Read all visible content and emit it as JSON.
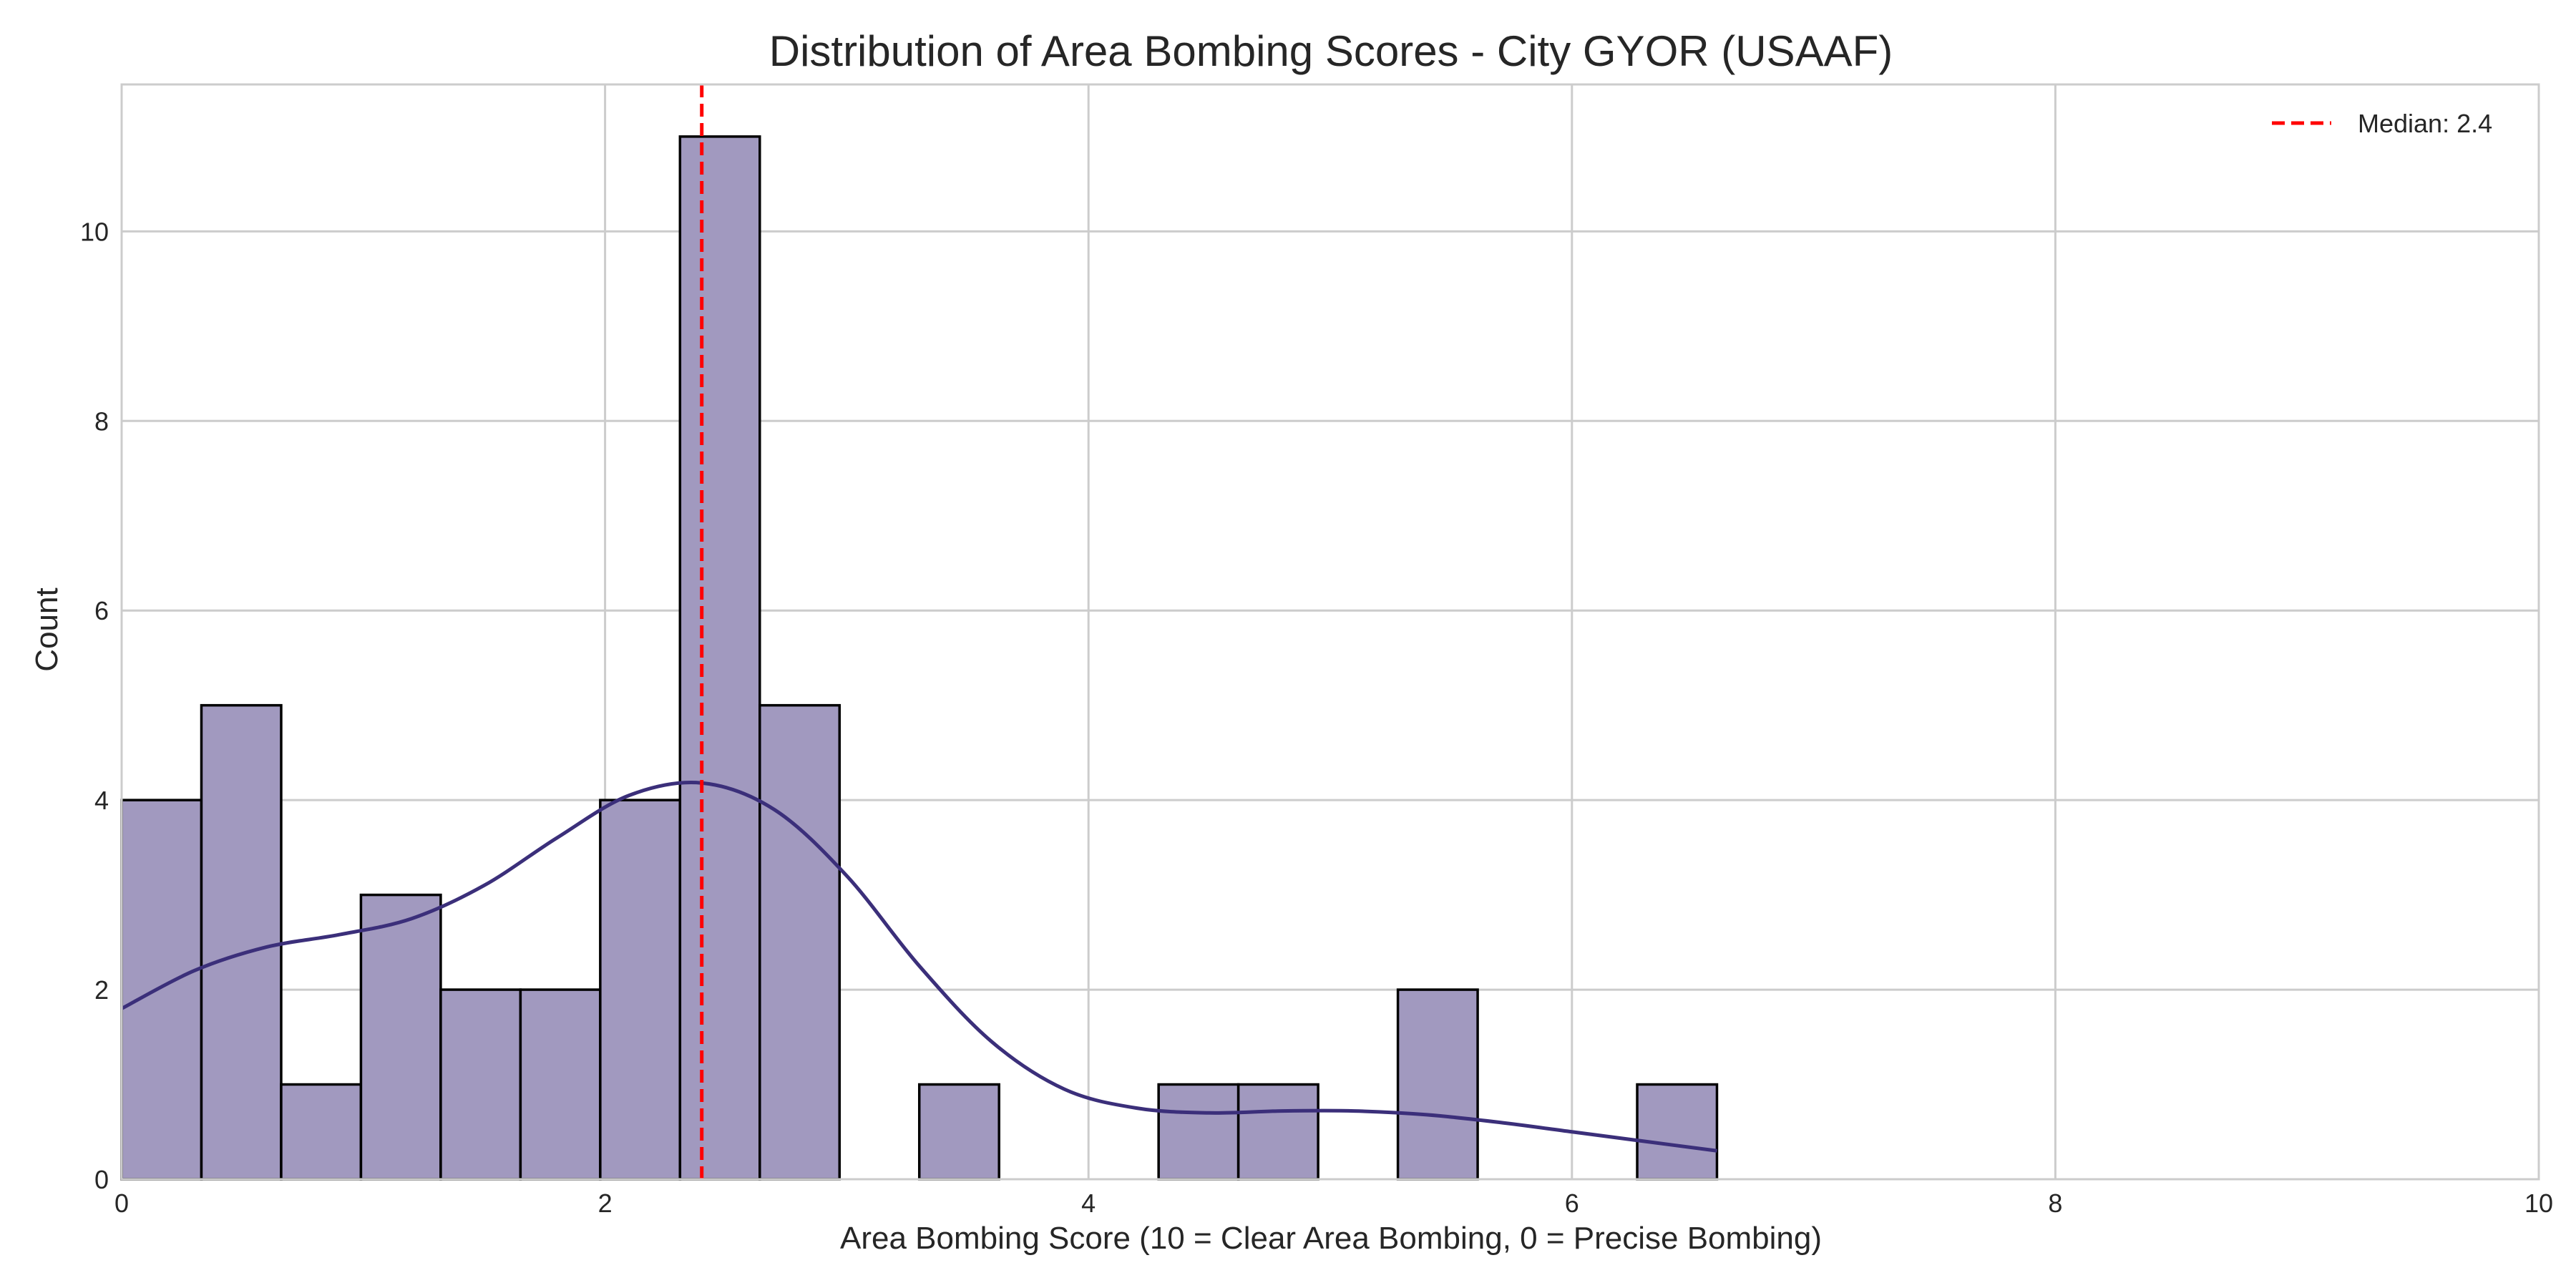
{
  "chart_data": {
    "type": "bar",
    "subtype": "histogram",
    "title": "Distribution of Area Bombing Scores - City GYOR (USAAF)",
    "xlabel": "Area Bombing Score (10 = Clear Area Bombing, 0 = Precise Bombing)",
    "ylabel": "Count",
    "xlim": [
      0,
      10
    ],
    "ylim": [
      0,
      11.55
    ],
    "xticks": [
      0,
      2,
      4,
      6,
      8,
      10
    ],
    "yticks": [
      0,
      2,
      4,
      6,
      8,
      10
    ],
    "grid": true,
    "legend_position": "top-right",
    "bin_edges": [
      0,
      0.33,
      0.66,
      0.99,
      1.32,
      1.65,
      1.98,
      2.31,
      2.64,
      2.97,
      3.3,
      3.63,
      3.96,
      4.29,
      4.62,
      4.95,
      5.28,
      5.61,
      5.94,
      6.27,
      6.6
    ],
    "counts": [
      4,
      5,
      1,
      3,
      2,
      2,
      4,
      11,
      5,
      0,
      1,
      0,
      0,
      1,
      1,
      0,
      2,
      0,
      0,
      1
    ],
    "bar_color": "#a199bf",
    "bar_edge_color": "#000000",
    "kde": {
      "name": "KDE",
      "color": "#3b2f7a",
      "x": [
        0,
        0.3,
        0.6,
        0.9,
        1.2,
        1.5,
        1.8,
        2.1,
        2.4,
        2.7,
        3.0,
        3.3,
        3.6,
        3.9,
        4.2,
        4.5,
        4.8,
        5.1,
        5.4,
        5.7,
        6.0,
        6.3,
        6.6
      ],
      "y": [
        1.8,
        2.2,
        2.45,
        2.58,
        2.75,
        3.1,
        3.6,
        4.05,
        4.18,
        3.9,
        3.2,
        2.25,
        1.45,
        0.95,
        0.75,
        0.7,
        0.72,
        0.72,
        0.68,
        0.6,
        0.5,
        0.4,
        0.3
      ]
    },
    "median": {
      "value": 2.4,
      "label": "Median: 2.4",
      "color": "#ff0000"
    }
  }
}
